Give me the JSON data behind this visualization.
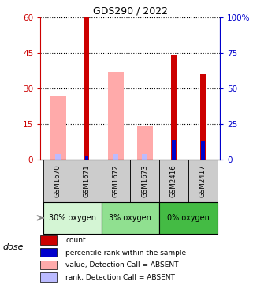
{
  "title": "GDS290 / 2022",
  "samples": [
    "GSM1670",
    "GSM1671",
    "GSM1672",
    "GSM1673",
    "GSM2416",
    "GSM2417"
  ],
  "red_count": [
    0,
    60,
    0,
    0,
    44,
    36
  ],
  "blue_rank": [
    0,
    3,
    0,
    0,
    14,
    13
  ],
  "pink_value": [
    27,
    0,
    37,
    14,
    0,
    0
  ],
  "lightblue_rank": [
    4,
    0,
    4,
    4,
    0,
    8
  ],
  "groups": [
    {
      "label": "30% oxygen",
      "start": 0,
      "end": 2,
      "color": "#d4f5d4"
    },
    {
      "label": "3% oxygen",
      "start": 2,
      "end": 4,
      "color": "#90e090"
    },
    {
      "label": "0% oxygen",
      "start": 4,
      "end": 6,
      "color": "#44bb44"
    }
  ],
  "ylim_left": [
    0,
    60
  ],
  "ylim_right": [
    0,
    100
  ],
  "yticks_left": [
    0,
    15,
    30,
    45,
    60
  ],
  "yticks_right": [
    0,
    25,
    50,
    75,
    100
  ],
  "left_tick_labels": [
    "0",
    "15",
    "30",
    "45",
    "60"
  ],
  "right_tick_labels": [
    "0",
    "25",
    "50",
    "75",
    "100%"
  ],
  "red_color": "#cc0000",
  "blue_color": "#0000cc",
  "pink_color": "#ffaaaa",
  "lightblue_color": "#bbbbff",
  "legend_items": [
    {
      "label": "count",
      "color": "#cc0000"
    },
    {
      "label": "percentile rank within the sample",
      "color": "#0000cc"
    },
    {
      "label": "value, Detection Call = ABSENT",
      "color": "#ffaaaa"
    },
    {
      "label": "rank, Detection Call = ABSENT",
      "color": "#bbbbff"
    }
  ],
  "dose_label": "dose",
  "left_axis_color": "#cc0000",
  "right_axis_color": "#0000cc",
  "sample_box_color": "#cccccc",
  "bar_wide": 0.55,
  "bar_narrow": 0.18
}
